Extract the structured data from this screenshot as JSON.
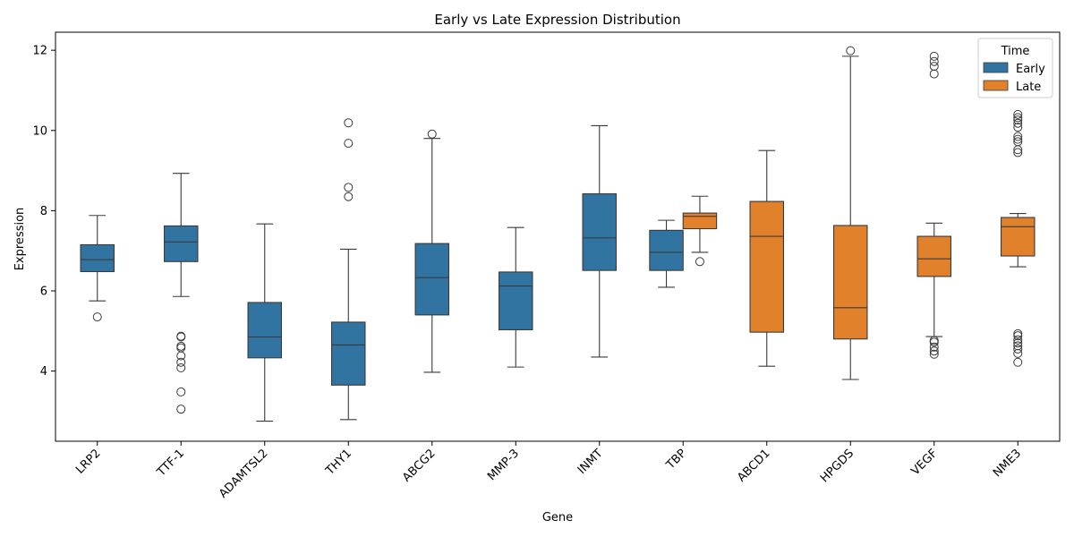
{
  "chart_data": {
    "type": "box",
    "title": "Early vs Late Expression Distribution",
    "xlabel": "Gene",
    "ylabel": "Expression",
    "ylim": [
      2.25,
      12.45
    ],
    "yticks": [
      4,
      6,
      8,
      10,
      12
    ],
    "legend": {
      "title": "Time",
      "placement": "top-right",
      "entries": [
        {
          "name": "Early",
          "color": "#3274a1"
        },
        {
          "name": "Late",
          "color": "#e1812c"
        }
      ]
    },
    "categories": [
      "LRP2",
      "TTF-1",
      "ADAMTSL2",
      "THY1",
      "ABCG2",
      "MMP-3",
      "INMT",
      "TBP",
      "ABCD1",
      "HPGDS",
      "VEGF",
      "NME3"
    ],
    "series": [
      {
        "name": "Early",
        "color": "#3274a1",
        "boxes": [
          {
            "category": "LRP2",
            "whislo": 5.75,
            "q1": 6.48,
            "med": 6.78,
            "q3": 7.15,
            "whishi": 7.88,
            "fliers": [
              5.35
            ]
          },
          {
            "category": "TTF-1",
            "whislo": 5.86,
            "q1": 6.73,
            "med": 7.22,
            "q3": 7.62,
            "whishi": 8.93,
            "fliers": [
              3.05,
              3.48,
              4.08,
              4.22,
              4.38,
              4.58,
              4.62,
              4.85,
              4.87
            ]
          },
          {
            "category": "ADAMTSL2",
            "whislo": 2.75,
            "q1": 4.33,
            "med": 4.85,
            "q3": 5.71,
            "whishi": 7.67,
            "fliers": []
          },
          {
            "category": "THY1",
            "whislo": 2.79,
            "q1": 3.65,
            "med": 4.65,
            "q3": 5.22,
            "whishi": 7.04,
            "fliers": [
              8.35,
              8.58,
              9.68,
              10.19
            ]
          },
          {
            "category": "ABCG2",
            "whislo": 3.97,
            "q1": 5.4,
            "med": 6.33,
            "q3": 7.18,
            "whishi": 9.8,
            "fliers": [
              9.91
            ]
          },
          {
            "category": "MMP-3",
            "whislo": 4.1,
            "q1": 5.03,
            "med": 6.12,
            "q3": 6.47,
            "whishi": 7.58,
            "fliers": []
          },
          {
            "category": "INMT",
            "whislo": 4.35,
            "q1": 6.51,
            "med": 7.32,
            "q3": 8.42,
            "whishi": 10.12,
            "fliers": []
          },
          {
            "category": "TBP",
            "whislo": 6.09,
            "q1": 6.51,
            "med": 6.96,
            "q3": 7.51,
            "whishi": 7.76,
            "fliers": []
          }
        ]
      },
      {
        "name": "Late",
        "color": "#e1812c",
        "boxes": [
          {
            "category": "TBP",
            "whislo": 6.96,
            "q1": 7.55,
            "med": 7.86,
            "q3": 7.94,
            "whishi": 8.36,
            "fliers": [
              6.73
            ]
          },
          {
            "category": "ABCD1",
            "whislo": 4.12,
            "q1": 4.97,
            "med": 7.36,
            "q3": 8.23,
            "whishi": 9.5,
            "fliers": []
          },
          {
            "category": "HPGDS",
            "whislo": 3.79,
            "q1": 4.8,
            "med": 5.58,
            "q3": 7.63,
            "whishi": 11.85,
            "fliers": [
              11.99
            ]
          },
          {
            "category": "VEGF",
            "whislo": 4.86,
            "q1": 6.36,
            "med": 6.8,
            "q3": 7.36,
            "whishi": 7.69,
            "fliers": [
              4.42,
              4.5,
              4.6,
              4.72,
              4.76,
              11.41,
              11.6,
              11.72,
              11.85
            ]
          },
          {
            "category": "NME3",
            "whislo": 6.6,
            "q1": 6.87,
            "med": 7.6,
            "q3": 7.83,
            "whishi": 7.93,
            "fliers": [
              4.22,
              4.44,
              4.55,
              4.63,
              4.7,
              4.78,
              4.88,
              4.93,
              9.45,
              9.52,
              9.72,
              9.78,
              9.85,
              10.08,
              10.18,
              10.26,
              10.32,
              10.4
            ]
          }
        ]
      }
    ]
  }
}
